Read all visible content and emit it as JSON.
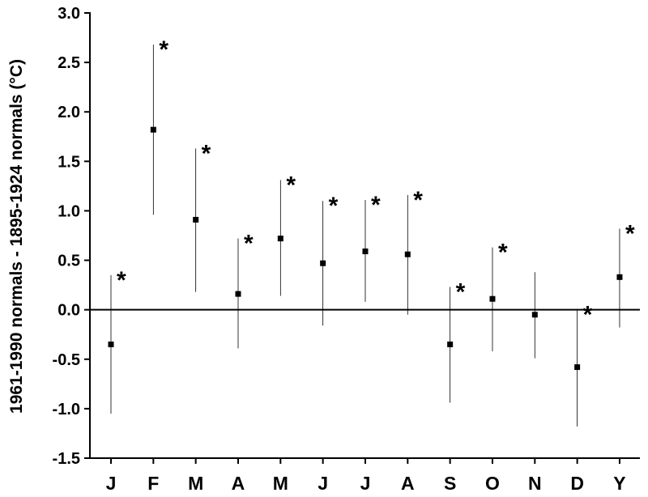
{
  "chart_data": {
    "type": "scatter",
    "ylabel": "1961-1990 normals - 1895-1924 normals (°C)",
    "xlabel": "",
    "ylim": [
      -1.5,
      3.0
    ],
    "yticks": [
      "-1.5",
      "-1.0",
      "-0.5",
      "0.0",
      "0.5",
      "1.0",
      "1.5",
      "2.0",
      "2.5",
      "3.0"
    ],
    "categories": [
      "J",
      "F",
      "M",
      "A",
      "M",
      "J",
      "J",
      "A",
      "S",
      "O",
      "N",
      "D",
      "Y"
    ],
    "values": [
      -0.35,
      1.82,
      0.91,
      0.16,
      0.72,
      0.47,
      0.59,
      0.56,
      -0.35,
      0.11,
      -0.05,
      -0.58,
      0.33
    ],
    "error_low": [
      -1.05,
      0.96,
      0.18,
      -0.39,
      0.14,
      -0.16,
      0.08,
      -0.05,
      -0.94,
      -0.42,
      -0.49,
      -1.18,
      -0.18
    ],
    "error_high": [
      0.35,
      2.68,
      1.63,
      0.72,
      1.31,
      1.1,
      1.11,
      1.16,
      0.23,
      0.63,
      0.38,
      0.0,
      0.82
    ],
    "significance_marker": "*",
    "significant": [
      true,
      true,
      true,
      true,
      true,
      true,
      true,
      true,
      true,
      true,
      false,
      true,
      true
    ],
    "zero_line": true,
    "grid": false,
    "legend": "none"
  }
}
